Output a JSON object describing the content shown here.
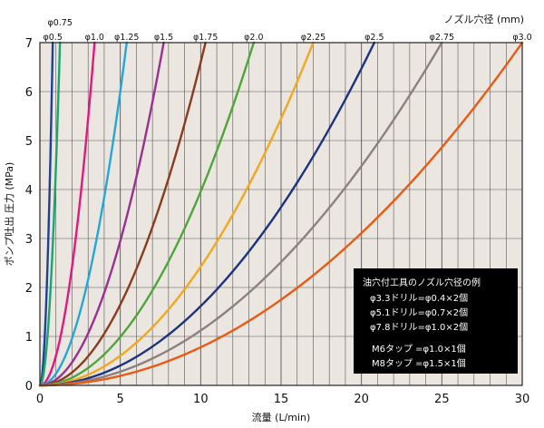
{
  "chart_data": {
    "type": "line",
    "xlabel": "流量 (L/min)",
    "ylabel": "ポンプ吐出 圧力 (MPa)",
    "top_axis_label": "ノズル穴径 (mm)",
    "xlim": [
      0,
      30
    ],
    "ylim": [
      0,
      7
    ],
    "x_ticks": [
      "0",
      "5",
      "10",
      "15",
      "20",
      "25",
      "30"
    ],
    "y_ticks": [
      "0",
      "1",
      "2",
      "3",
      "4",
      "5",
      "6",
      "7"
    ],
    "grid": true,
    "plot_bg": "#ebe6e0",
    "series": [
      {
        "name": "φ0.5",
        "x_at_7": 0.8,
        "color": "#1f3f99"
      },
      {
        "name": "φ0.75",
        "x_at_7": 1.25,
        "color": "#1aa66c"
      },
      {
        "name": "φ1.0",
        "x_at_7": 3.4,
        "color": "#e3187f"
      },
      {
        "name": "φ1.25",
        "x_at_7": 5.4,
        "color": "#23a6d8"
      },
      {
        "name": "φ1.5",
        "x_at_7": 7.7,
        "color": "#9a2f8f"
      },
      {
        "name": "φ1.75",
        "x_at_7": 10.3,
        "color": "#8b3a1e"
      },
      {
        "name": "φ2.0",
        "x_at_7": 13.3,
        "color": "#4ea53a"
      },
      {
        "name": "φ2.25",
        "x_at_7": 17.0,
        "color": "#f2a81d"
      },
      {
        "name": "φ2.5",
        "x_at_7": 20.8,
        "color": "#1b3380"
      },
      {
        "name": "φ2.75",
        "x_at_7": 25.0,
        "color": "#8c8080"
      },
      {
        "name": "φ3.0",
        "x_at_7": 30.0,
        "color": "#ea5a12"
      }
    ]
  },
  "note": {
    "title": "油穴付工具のノズル穴径の例",
    "lines": [
      "φ3.3ドリル=φ0.4×2個",
      "φ5.1ドリル=φ0.7×2個",
      "φ7.8ドリル=φ1.0×2個",
      "",
      "M6タップ =φ1.0×1個",
      "M8タップ =φ1.5×1個"
    ]
  }
}
